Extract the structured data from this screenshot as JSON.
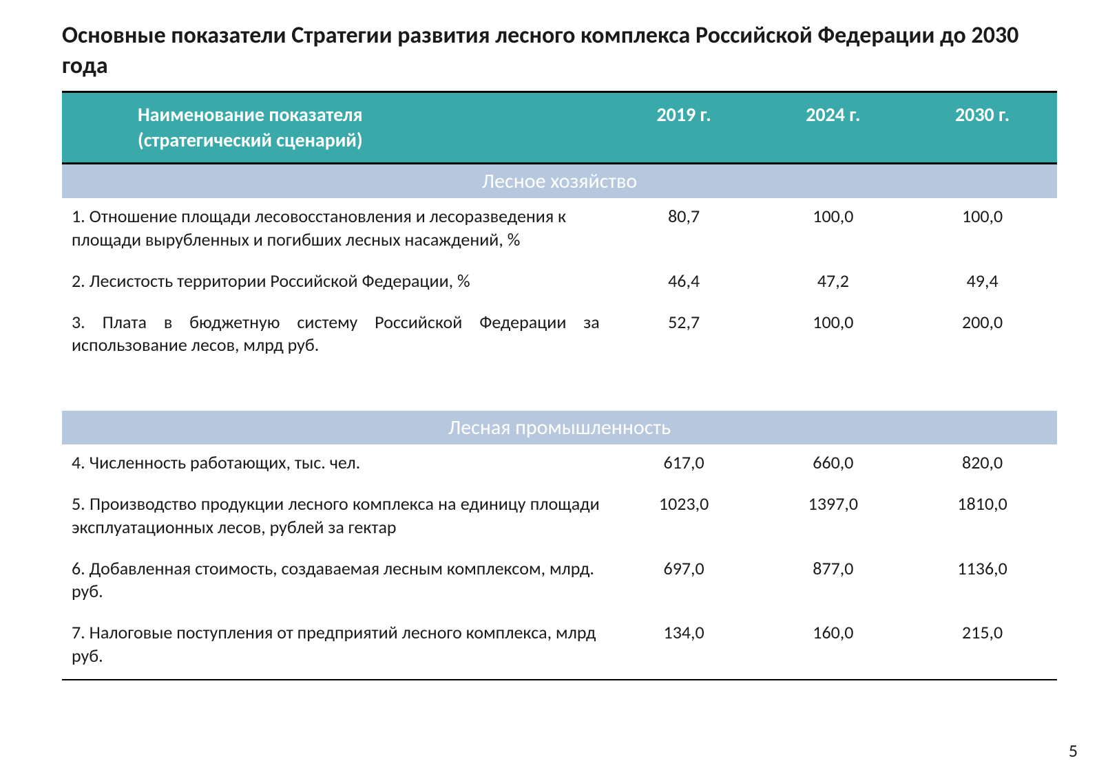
{
  "title": "Основные показатели Стратегии развития лесного комплекса Российской Федерации до 2030 года",
  "page_number": "5",
  "colors": {
    "header_bg": "#3aa9aa",
    "header_text": "#ffffff",
    "section_bg": "#b6c7de",
    "section_text": "#ffffff",
    "body_text": "#1a1a1a",
    "border": "#000000",
    "page_bg": "#ffffff"
  },
  "typography": {
    "title_fontsize": 34,
    "header_fontsize": 28,
    "section_fontsize": 30,
    "body_fontsize": 26,
    "font_family": "Calibri"
  },
  "table": {
    "type": "table",
    "header": {
      "name": "Наименование показателя\n(стратегический сценарий)",
      "y2019": "2019 г.",
      "y2024": "2024 г.",
      "y2030": "2030 г."
    },
    "sections": [
      {
        "title": "Лесное хозяйство",
        "rows": [
          {
            "label": "1.  Отношение площади лесовосстановления и лесоразведения к площади вырубленных и погибших лесных насаждений, %",
            "y2019": "80,7",
            "y2024": "100,0",
            "y2030": "100,0",
            "justify": false
          },
          {
            "label": "2.  Лесистость территории Российской Федерации, %",
            "y2019": "46,4",
            "y2024": "47,2",
            "y2030": "49,4",
            "justify": false
          },
          {
            "label": "3. Плата в бюджетную систему Российской Федерации за использование лесов, млрд руб.",
            "y2019": "52,7",
            "y2024": "100,0",
            "y2030": "200,0",
            "justify": true
          }
        ]
      },
      {
        "title": "Лесная промышленность",
        "rows": [
          {
            "label": "4.  Численность работающих, тыс. чел.",
            "y2019": "617,0",
            "y2024": "660,0",
            "y2030": "820,0",
            "justify": false
          },
          {
            "label": "5. Производство продукции лесного комплекса на единицу площади эксплуатационных лесов, рублей за гектар",
            "y2019": "1023,0",
            "y2024": "1397,0",
            "y2030": "1810,0",
            "justify": true
          },
          {
            "label": "6.  Добавленная  стоимость, создаваемая лесным комплексом, млрд. руб.",
            "y2019": "697,0",
            "y2024": "877,0",
            "y2030": "1136,0",
            "justify": false
          },
          {
            "label": "7.  Налоговые поступления от предприятий лесного комплекса, млрд руб.",
            "y2019": "134,0",
            "y2024": "160,0",
            "y2030": "215,0",
            "justify": false
          }
        ]
      }
    ]
  }
}
